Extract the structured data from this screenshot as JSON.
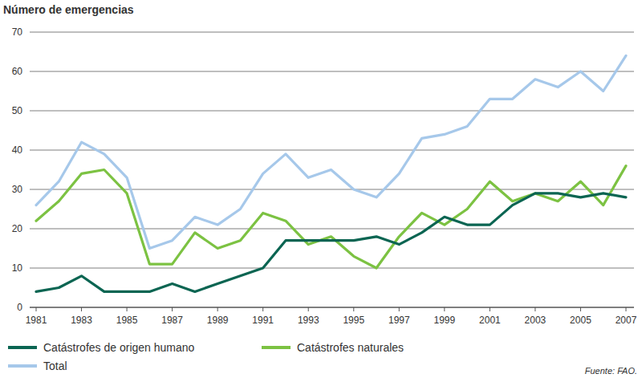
{
  "chart_data": {
    "type": "line",
    "ylabel": "Número de emergencias",
    "source": "Fuente: FAO.",
    "x": [
      1981,
      1982,
      1983,
      1984,
      1985,
      1986,
      1987,
      1988,
      1989,
      1990,
      1991,
      1992,
      1993,
      1994,
      1995,
      1996,
      1997,
      1998,
      1999,
      2000,
      2001,
      2002,
      2003,
      2004,
      2005,
      2006,
      2007
    ],
    "xlim": [
      1981,
      2007
    ],
    "xticks": [
      1981,
      1983,
      1985,
      1987,
      1989,
      1991,
      1993,
      1995,
      1997,
      1999,
      2001,
      2003,
      2005,
      2007
    ],
    "ylim": [
      0,
      70
    ],
    "yticks": [
      0,
      10,
      20,
      30,
      40,
      50,
      60,
      70
    ],
    "grid": true,
    "legend": "bottom",
    "series": [
      {
        "name": "Catástrofes de origen humano",
        "color": "#0b6552",
        "values": [
          4,
          5,
          8,
          4,
          4,
          4,
          6,
          4,
          6,
          8,
          10,
          17,
          17,
          17,
          17,
          18,
          16,
          19,
          23,
          21,
          21,
          26,
          29,
          29,
          28,
          29,
          28
        ]
      },
      {
        "name": "Catástrofes naturales",
        "color": "#7cc242",
        "values": [
          22,
          27,
          34,
          35,
          29,
          11,
          11,
          19,
          15,
          17,
          24,
          22,
          16,
          18,
          13,
          10,
          18,
          24,
          21,
          25,
          32,
          27,
          29,
          27,
          32,
          26,
          36
        ]
      },
      {
        "name": "Total",
        "color": "#a6c8ea",
        "values": [
          26,
          32,
          42,
          39,
          33,
          15,
          17,
          23,
          21,
          25,
          34,
          39,
          33,
          35,
          30,
          28,
          34,
          43,
          44,
          46,
          53,
          53,
          58,
          56,
          60,
          55,
          64
        ]
      }
    ]
  }
}
